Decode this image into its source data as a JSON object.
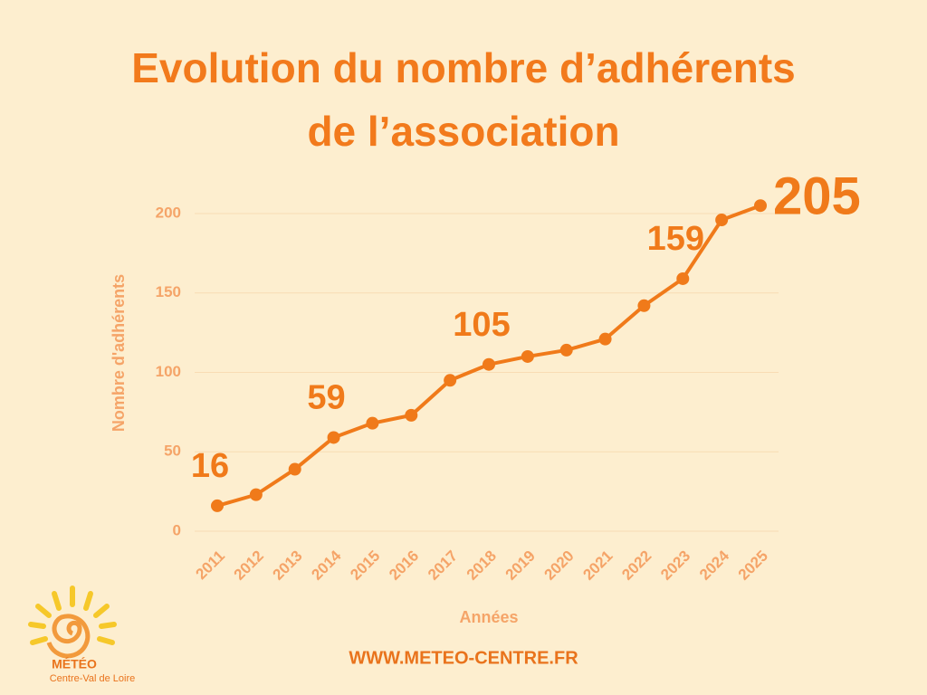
{
  "chart_data": {
    "type": "line",
    "title": "Evolution du nombre d’adhérents de l’association",
    "x_label": "Années",
    "y_label": "Nombre d'adhérents",
    "categories": [
      "2011",
      "2012",
      "2013",
      "2014",
      "2015",
      "2016",
      "2017",
      "2018",
      "2019",
      "2020",
      "2021",
      "2022",
      "2023",
      "2024",
      "2025"
    ],
    "series": [
      {
        "name": "Adhérents",
        "color": "#f07a1a",
        "values": [
          16,
          23,
          39,
          59,
          68,
          73,
          95,
          105,
          110,
          114,
          121,
          142,
          159,
          196,
          205
        ],
        "value_labels": [
          "16",
          null,
          null,
          "59",
          null,
          null,
          null,
          "105",
          null,
          null,
          null,
          null,
          "159",
          null,
          "205"
        ]
      }
    ],
    "ylim": [
      0,
      200
    ],
    "yticks": [
      0,
      50,
      100,
      150,
      200
    ],
    "grid": true
  },
  "branding": {
    "logo_title": "MÉTÉO",
    "logo_subtitle": "Centre-Val de Loire",
    "website": "WWW.METEO-CENTRE.FR"
  }
}
